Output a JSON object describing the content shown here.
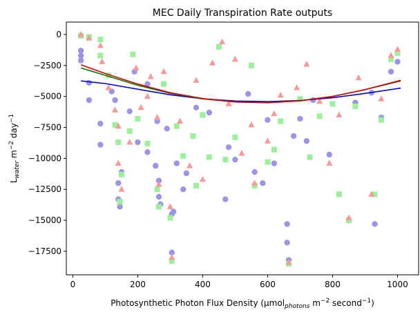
{
  "chart_data": {
    "type": "scatter",
    "title": "MEC Daily Transpiration Rate outputs",
    "xlabel": {
      "prefix": "Photosynthetic Photon Flux Density (μmol",
      "sub": "photons",
      "middle": " m",
      "sup1": "−2",
      "suffix": " second",
      "sup2": "−1",
      "close": ")"
    },
    "ylabel": {
      "prefix": "L",
      "sub": "water",
      "middle": " m",
      "sup1": "−2",
      "suffix": " day",
      "sup2": "−1"
    },
    "xlim": [
      -20,
      1065
    ],
    "ylim": [
      -19400,
      1000
    ],
    "xticks": [
      0,
      200,
      400,
      600,
      800,
      1000
    ],
    "yticks": [
      0,
      -2500,
      -5000,
      -7500,
      -10000,
      -12500,
      -15000,
      -17500
    ],
    "ytick_labels": [
      "0",
      "−2500",
      "−5000",
      "−7500",
      "−10000",
      "−12500",
      "−15000",
      "−17500"
    ],
    "colors": {
      "series_circle": "#9b95e8",
      "series_square": "#9df09a",
      "series_triangle": "#f99a9a",
      "fit_blue": "#0000dd",
      "fit_green": "#007700",
      "fit_red": "#dd0000"
    },
    "series": [
      {
        "marker": "circle",
        "color": "#9b95e8",
        "points": [
          [
            25,
            -1300
          ],
          [
            25,
            -1700
          ],
          [
            25,
            -2100
          ],
          [
            50,
            -3900
          ],
          [
            50,
            -5300
          ],
          [
            85,
            -7200
          ],
          [
            85,
            -8900
          ],
          [
            140,
            -12000
          ],
          [
            140,
            -13300
          ],
          [
            145,
            -13900
          ],
          [
            150,
            -11100
          ],
          [
            120,
            -4600
          ],
          [
            130,
            -5300
          ],
          [
            175,
            -6200
          ],
          [
            190,
            -3000
          ],
          [
            200,
            -8700
          ],
          [
            230,
            -9500
          ],
          [
            255,
            -10600
          ],
          [
            265,
            -11800
          ],
          [
            265,
            -13100
          ],
          [
            270,
            -13700
          ],
          [
            305,
            -14500
          ],
          [
            305,
            -17600
          ],
          [
            310,
            -14300
          ],
          [
            340,
            -12500
          ],
          [
            350,
            -11200
          ],
          [
            320,
            -10400
          ],
          [
            400,
            -6500
          ],
          [
            420,
            -6300
          ],
          [
            470,
            -13300
          ],
          [
            480,
            -9100
          ],
          [
            500,
            -10100
          ],
          [
            560,
            -11100
          ],
          [
            585,
            -12000
          ],
          [
            620,
            -10400
          ],
          [
            660,
            -15300
          ],
          [
            660,
            -16800
          ],
          [
            665,
            -18200
          ],
          [
            680,
            -8200
          ],
          [
            700,
            -6800
          ],
          [
            720,
            -8600
          ],
          [
            740,
            -5300
          ],
          [
            790,
            -9700
          ],
          [
            820,
            -12900
          ],
          [
            850,
            -15000
          ],
          [
            870,
            -5500
          ],
          [
            920,
            -4700
          ],
          [
            930,
            -15300
          ],
          [
            950,
            -6700
          ],
          [
            980,
            -3000
          ],
          [
            1000,
            -2200
          ],
          [
            380,
            -5900
          ],
          [
            540,
            -4800
          ],
          [
            600,
            -6900
          ],
          [
            260,
            -7000
          ],
          [
            290,
            -7600
          ],
          [
            230,
            -4000
          ]
        ]
      },
      {
        "marker": "square",
        "color": "#9df09a",
        "points": [
          [
            25,
            -100
          ],
          [
            50,
            -200
          ],
          [
            85,
            -400
          ],
          [
            85,
            -1700
          ],
          [
            110,
            -3300
          ],
          [
            130,
            -7300
          ],
          [
            140,
            -8700
          ],
          [
            145,
            -13500
          ],
          [
            150,
            -11300
          ],
          [
            175,
            -7800
          ],
          [
            185,
            -1600
          ],
          [
            200,
            -6800
          ],
          [
            230,
            -8800
          ],
          [
            260,
            -12500
          ],
          [
            265,
            -13900
          ],
          [
            300,
            -14800
          ],
          [
            305,
            -18300
          ],
          [
            340,
            -9800
          ],
          [
            380,
            -12200
          ],
          [
            420,
            -9900
          ],
          [
            470,
            -10100
          ],
          [
            500,
            -8300
          ],
          [
            560,
            -12200
          ],
          [
            600,
            -10300
          ],
          [
            640,
            -7000
          ],
          [
            665,
            -18500
          ],
          [
            700,
            -5200
          ],
          [
            730,
            -9900
          ],
          [
            760,
            -6600
          ],
          [
            800,
            -5600
          ],
          [
            820,
            -12900
          ],
          [
            850,
            -15000
          ],
          [
            870,
            -5800
          ],
          [
            930,
            -12900
          ],
          [
            950,
            -6900
          ],
          [
            980,
            -2000
          ],
          [
            1000,
            -1500
          ],
          [
            400,
            -6500
          ],
          [
            450,
            -1000
          ],
          [
            550,
            -2500
          ],
          [
            620,
            -9300
          ],
          [
            280,
            -4000
          ],
          [
            320,
            -7400
          ],
          [
            370,
            -8200
          ]
        ]
      },
      {
        "marker": "triangle",
        "color": "#f99a9a",
        "points": [
          [
            25,
            0
          ],
          [
            50,
            -300
          ],
          [
            85,
            -900
          ],
          [
            90,
            -2200
          ],
          [
            110,
            -4300
          ],
          [
            130,
            -6100
          ],
          [
            140,
            -7400
          ],
          [
            140,
            -10400
          ],
          [
            150,
            -12500
          ],
          [
            175,
            -8700
          ],
          [
            195,
            -2700
          ],
          [
            210,
            -5900
          ],
          [
            240,
            -3400
          ],
          [
            260,
            -6700
          ],
          [
            265,
            -12100
          ],
          [
            300,
            -13900
          ],
          [
            305,
            -18000
          ],
          [
            330,
            -7000
          ],
          [
            360,
            -10600
          ],
          [
            400,
            -11700
          ],
          [
            460,
            -600
          ],
          [
            480,
            -5600
          ],
          [
            520,
            -9600
          ],
          [
            560,
            -12000
          ],
          [
            600,
            -8600
          ],
          [
            620,
            -6400
          ],
          [
            665,
            -18400
          ],
          [
            690,
            -4300
          ],
          [
            720,
            -2400
          ],
          [
            760,
            -5400
          ],
          [
            790,
            -10400
          ],
          [
            820,
            -6500
          ],
          [
            850,
            -14800
          ],
          [
            880,
            -3500
          ],
          [
            920,
            -12900
          ],
          [
            950,
            -5200
          ],
          [
            980,
            -1700
          ],
          [
            1000,
            -1200
          ],
          [
            380,
            -3700
          ],
          [
            430,
            -2300
          ],
          [
            500,
            -2000
          ],
          [
            550,
            -7300
          ],
          [
            640,
            -4900
          ],
          [
            280,
            -3000
          ],
          [
            230,
            -5000
          ]
        ]
      }
    ],
    "fits": [
      {
        "color": "#0000dd",
        "x": [
          25,
          100,
          200,
          300,
          400,
          500,
          600,
          700,
          800,
          900,
          1010
        ],
        "y": [
          -3750,
          -3960,
          -4420,
          -4870,
          -5190,
          -5370,
          -5420,
          -5330,
          -5110,
          -4760,
          -4330
        ]
      },
      {
        "color": "#007700",
        "x": [
          25,
          100,
          200,
          300,
          400,
          500,
          600,
          700,
          800,
          900,
          1010
        ],
        "y": [
          -2700,
          -3300,
          -4100,
          -4750,
          -5200,
          -5450,
          -5500,
          -5350,
          -5000,
          -4450,
          -3750
        ]
      },
      {
        "color": "#dd0000",
        "x": [
          25,
          100,
          200,
          300,
          400,
          500,
          600,
          700,
          800,
          900,
          1010
        ],
        "y": [
          -2450,
          -3150,
          -4000,
          -4700,
          -5170,
          -5450,
          -5510,
          -5360,
          -5010,
          -4450,
          -3700
        ]
      }
    ]
  }
}
